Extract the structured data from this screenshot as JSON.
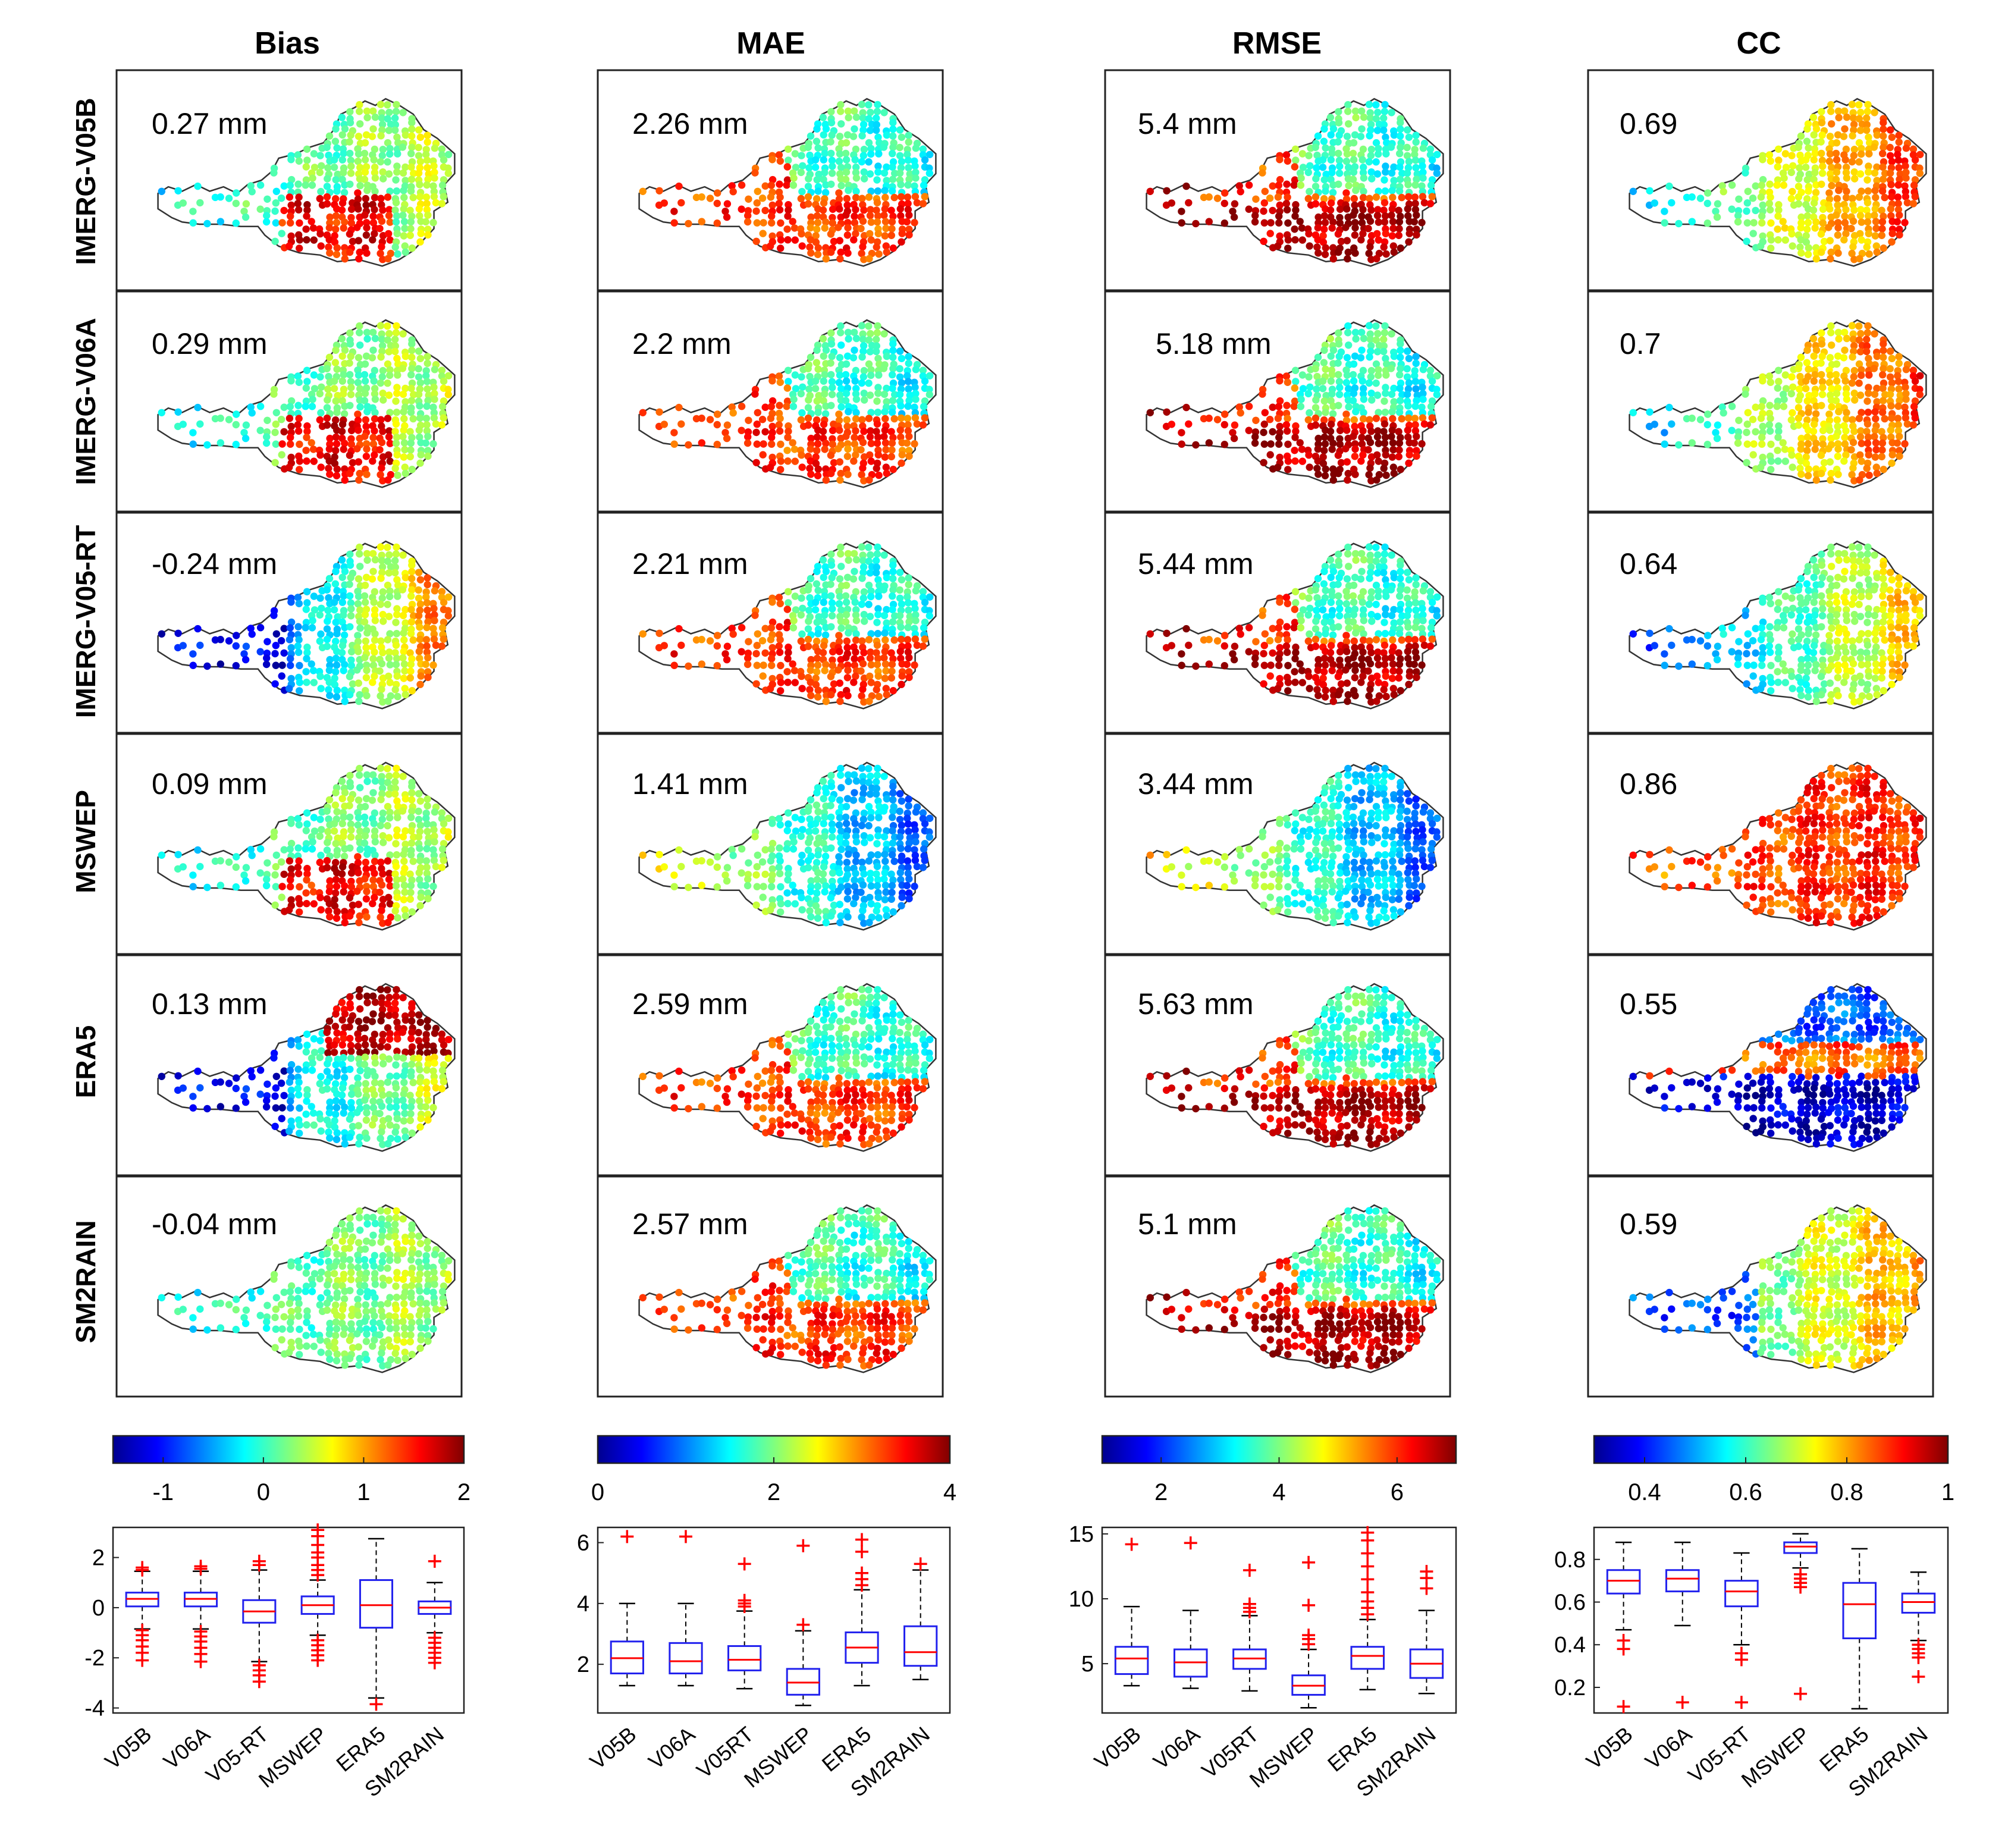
{
  "colors": {
    "box": "#2222ee",
    "median": "#ff0000",
    "outlier": "#ff0000",
    "whisker": "#000000",
    "outline": "#7a7a7a"
  },
  "chart_data": {
    "type": "map-panels-with-boxplots",
    "column_titles": [
      "Bias",
      "MAE",
      "RMSE",
      "CC"
    ],
    "row_labels": [
      "IMERG-V05B",
      "IMERG-V06A",
      "IMERG-V05-RT",
      "MSWEP",
      "ERA5",
      "SM2RAIN"
    ],
    "panel_values": [
      [
        "0.27 mm",
        "2.26 mm",
        "5.4 mm",
        "0.69"
      ],
      [
        "0.29 mm",
        "2.2 mm",
        "5.18 mm",
        "0.7"
      ],
      [
        "-0.24 mm",
        "2.21 mm",
        "5.44 mm",
        "0.64"
      ],
      [
        "0.09 mm",
        "1.41 mm",
        "3.44 mm",
        "0.86"
      ],
      [
        "0.13 mm",
        "2.59 mm",
        "5.63 mm",
        "0.55"
      ],
      [
        "-0.04 mm",
        "2.57 mm",
        "5.1 mm",
        "0.59"
      ]
    ],
    "colorbars": [
      {
        "metric": "Bias",
        "range": [
          -1.5,
          2
        ],
        "ticks": [
          -1,
          0,
          1,
          2
        ],
        "tick_labels": [
          "-1",
          "0",
          "1",
          "2"
        ],
        "colormap": "jet"
      },
      {
        "metric": "MAE",
        "range": [
          0,
          4
        ],
        "ticks": [
          0,
          2,
          4
        ],
        "tick_labels": [
          "0",
          "2",
          "4"
        ],
        "colormap": "jet"
      },
      {
        "metric": "RMSE",
        "range": [
          1,
          7
        ],
        "ticks": [
          2,
          4,
          6
        ],
        "tick_labels": [
          "2",
          "4",
          "6"
        ],
        "colormap": "jet"
      },
      {
        "metric": "CC",
        "range": [
          0.3,
          1
        ],
        "ticks": [
          0.4,
          0.6,
          0.8,
          1
        ],
        "tick_labels": [
          "0.4",
          "0.6",
          "0.8",
          "1"
        ],
        "colormap": "jet"
      }
    ],
    "boxplots": [
      {
        "metric": "Bias",
        "ylim": [
          -4.2,
          3.2
        ],
        "yticks": [
          -4,
          -2,
          0,
          2
        ],
        "ytick_labels": [
          "-4",
          "-2",
          "0",
          "2"
        ],
        "categories": [
          "V05B",
          "V06A",
          "V05-RT",
          "MSWEP",
          "ERA5",
          "SM2RAIN"
        ],
        "stats": [
          {
            "min": -0.85,
            "q1": 0.05,
            "median": 0.35,
            "q3": 0.6,
            "max": 1.45,
            "outliers": [
              1.5,
              1.6,
              -0.9,
              -1.1,
              -1.3,
              -1.55,
              -1.8,
              -2.1
            ]
          },
          {
            "min": -0.85,
            "q1": 0.05,
            "median": 0.35,
            "q3": 0.6,
            "max": 1.45,
            "outliers": [
              1.55,
              1.65,
              -0.95,
              -1.15,
              -1.35,
              -1.6,
              -1.85,
              -2.15
            ]
          },
          {
            "min": -2.15,
            "q1": -0.6,
            "median": -0.15,
            "q3": 0.3,
            "max": 1.5,
            "outliers": [
              1.7,
              1.85,
              -2.3,
              -2.5,
              -2.7,
              -2.95
            ]
          },
          {
            "min": -1.1,
            "q1": -0.25,
            "median": 0.1,
            "q3": 0.45,
            "max": 1.1,
            "outliers": [
              1.3,
              1.5,
              1.7,
              2.0,
              2.2,
              2.5,
              2.85,
              3.1,
              -1.3,
              -1.5,
              -1.7,
              -1.9,
              -2.1
            ]
          },
          {
            "min": -3.6,
            "q1": -0.8,
            "median": 0.1,
            "q3": 1.1,
            "max": 2.75,
            "outliers": [
              -3.85
            ]
          },
          {
            "min": -1.0,
            "q1": -0.25,
            "median": 0.0,
            "q3": 0.25,
            "max": 1.0,
            "outliers": [
              1.85,
              -1.2,
              -1.4,
              -1.6,
              -1.8,
              -2.0,
              -2.2
            ]
          }
        ]
      },
      {
        "metric": "MAE",
        "ylim": [
          0.4,
          6.5
        ],
        "yticks": [
          2,
          4,
          6
        ],
        "ytick_labels": [
          "2",
          "4",
          "6"
        ],
        "categories": [
          "V05B",
          "V06A",
          "V05RT",
          "MSWEP",
          "ERA5",
          "SM2RAIN"
        ],
        "stats": [
          {
            "min": 1.3,
            "q1": 1.7,
            "median": 2.2,
            "q3": 2.75,
            "max": 4.0,
            "outliers": [
              6.2
            ]
          },
          {
            "min": 1.3,
            "q1": 1.7,
            "median": 2.1,
            "q3": 2.7,
            "max": 4.0,
            "outliers": [
              6.2
            ]
          },
          {
            "min": 1.2,
            "q1": 1.8,
            "median": 2.15,
            "q3": 2.6,
            "max": 3.75,
            "outliers": [
              3.9,
              4.0,
              4.1,
              5.3
            ]
          },
          {
            "min": 0.65,
            "q1": 1.0,
            "median": 1.4,
            "q3": 1.85,
            "max": 3.1,
            "outliers": [
              3.3,
              5.9
            ]
          },
          {
            "min": 1.3,
            "q1": 2.05,
            "median": 2.55,
            "q3": 3.05,
            "max": 4.45,
            "outliers": [
              4.6,
              4.8,
              5.0,
              5.7,
              6.1
            ]
          },
          {
            "min": 1.5,
            "q1": 1.95,
            "median": 2.4,
            "q3": 3.25,
            "max": 5.1,
            "outliers": [
              5.3
            ]
          }
        ]
      },
      {
        "metric": "RMSE",
        "ylim": [
          1.2,
          15.5
        ],
        "yticks": [
          5,
          10,
          15
        ],
        "ytick_labels": [
          "5",
          "10",
          "15"
        ],
        "categories": [
          "V05B",
          "V06A",
          "V05RT",
          "MSWEP",
          "ERA5",
          "SM2RAIN"
        ],
        "stats": [
          {
            "min": 3.3,
            "q1": 4.2,
            "median": 5.4,
            "q3": 6.3,
            "max": 9.4,
            "outliers": [
              14.2
            ]
          },
          {
            "min": 3.1,
            "q1": 4.0,
            "median": 5.1,
            "q3": 6.1,
            "max": 9.1,
            "outliers": [
              14.3
            ]
          },
          {
            "min": 2.9,
            "q1": 4.6,
            "median": 5.4,
            "q3": 6.1,
            "max": 8.7,
            "outliers": [
              9.0,
              9.3,
              9.6,
              12.2
            ]
          },
          {
            "min": 1.6,
            "q1": 2.6,
            "median": 3.3,
            "q3": 4.1,
            "max": 6.1,
            "outliers": [
              6.5,
              6.9,
              7.2,
              9.5,
              12.8
            ]
          },
          {
            "min": 3.0,
            "q1": 4.6,
            "median": 5.6,
            "q3": 6.3,
            "max": 8.4,
            "outliers": [
              8.8,
              9.3,
              9.8,
              10.5,
              11.5,
              12.5,
              13.5,
              14.5,
              15.1
            ]
          },
          {
            "min": 2.7,
            "q1": 3.9,
            "median": 5.0,
            "q3": 6.1,
            "max": 9.1,
            "outliers": [
              10.8,
              11.6,
              12.1
            ]
          }
        ]
      },
      {
        "metric": "CC",
        "ylim": [
          0.08,
          0.95
        ],
        "yticks": [
          0.2,
          0.4,
          0.6,
          0.8
        ],
        "ytick_labels": [
          "0.2",
          "0.4",
          "0.6",
          "0.8"
        ],
        "categories": [
          "V05B",
          "V06A",
          "V05-RT",
          "MSWEP",
          "ERA5",
          "SM2RAIN"
        ],
        "stats": [
          {
            "min": 0.47,
            "q1": 0.64,
            "median": 0.7,
            "q3": 0.75,
            "max": 0.88,
            "outliers": [
              0.42,
              0.38,
              0.11
            ]
          },
          {
            "min": 0.49,
            "q1": 0.65,
            "median": 0.71,
            "q3": 0.75,
            "max": 0.88,
            "outliers": [
              0.13
            ]
          },
          {
            "min": 0.4,
            "q1": 0.58,
            "median": 0.65,
            "q3": 0.7,
            "max": 0.83,
            "outliers": [
              0.36,
              0.33,
              0.13
            ]
          },
          {
            "min": 0.76,
            "q1": 0.83,
            "median": 0.86,
            "q3": 0.88,
            "max": 0.92,
            "outliers": [
              0.73,
              0.71,
              0.69,
              0.67,
              0.17
            ]
          },
          {
            "min": 0.1,
            "q1": 0.43,
            "median": 0.59,
            "q3": 0.69,
            "max": 0.85,
            "outliers": []
          },
          {
            "min": 0.42,
            "q1": 0.55,
            "median": 0.6,
            "q3": 0.64,
            "max": 0.74,
            "outliers": [
              0.4,
              0.38,
              0.36,
              0.34,
              0.25
            ]
          }
        ]
      }
    ]
  }
}
